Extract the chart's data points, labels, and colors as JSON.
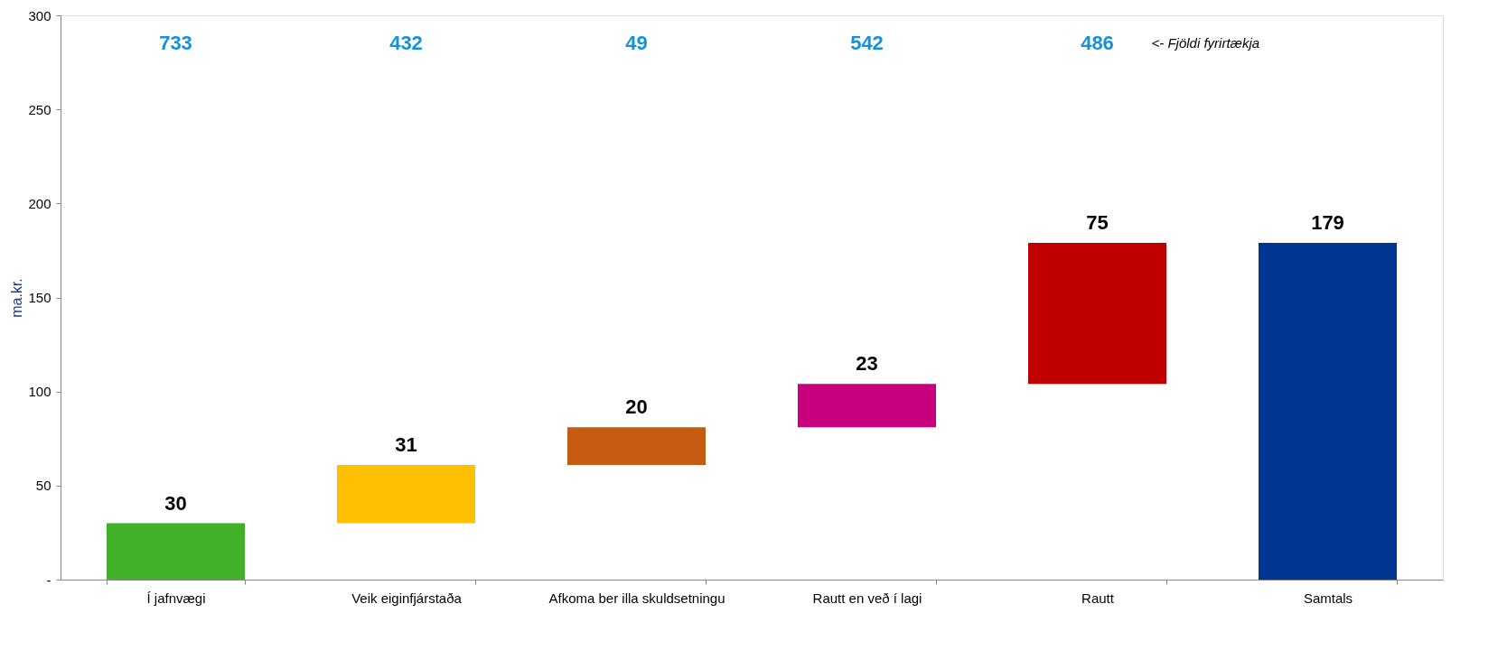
{
  "chart_data": {
    "type": "bar",
    "ylabel": "ma.kr.",
    "categories": [
      "Í jafnvægi",
      "Veik eiginfjárstaða",
      "Afkoma ber illa skuldsetningu",
      "Rautt en veð í lagi",
      "Rautt",
      "Samtals"
    ],
    "values": [
      30,
      31,
      20,
      23,
      75,
      179
    ],
    "base": [
      0,
      30,
      61,
      81,
      104,
      0
    ],
    "colors": [
      "#43b02a",
      "#ffc000",
      "#c55a11",
      "#c8007e",
      "#c00000",
      "#003591"
    ],
    "data_labels": true,
    "ylim": [
      0,
      300
    ],
    "yticks": [
      {
        "value": 0,
        "label": "-"
      },
      50,
      100,
      150,
      200,
      250,
      300
    ],
    "grid": false,
    "annotations": [
      "733",
      "432",
      "49",
      "542",
      "486",
      "<- Fjöldi fyrirtækja"
    ]
  }
}
